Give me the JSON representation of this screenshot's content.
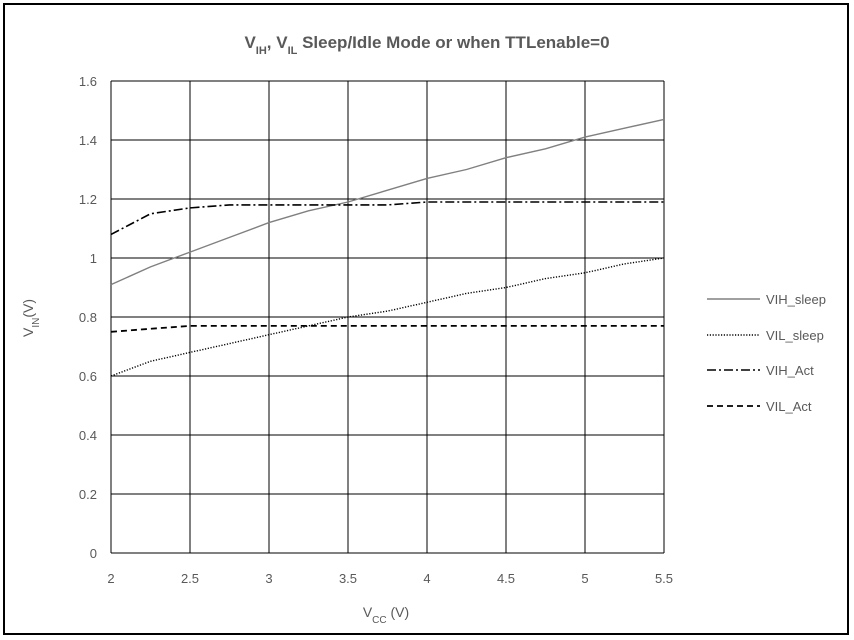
{
  "chart_data": {
    "type": "line",
    "title": {
      "parts": [
        {
          "text": "V",
          "sub": "IH"
        },
        {
          "text": ", V",
          "sub": "IL"
        },
        {
          "text": " Sleep/Idle Mode or when  TTLenable=0",
          "sub": ""
        }
      ]
    },
    "xlabel": {
      "main": "V",
      "sub": "CC",
      "rest": " (V)"
    },
    "ylabel": {
      "main": "V",
      "sub": "IN",
      "rest": "(V)"
    },
    "xlim": [
      2,
      5.5
    ],
    "ylim": [
      0,
      1.6
    ],
    "xticks": [
      2,
      2.5,
      3,
      3.5,
      4,
      4.5,
      5,
      5.5
    ],
    "xtick_labels": [
      "2",
      "2.5",
      "3",
      "3.5",
      "4",
      "4.5",
      "5",
      "5.5"
    ],
    "yticks": [
      0,
      0.2,
      0.4,
      0.6,
      0.8,
      1.0,
      1.2,
      1.4,
      1.6
    ],
    "ytick_labels": [
      "0",
      "0.2",
      "0.4",
      "0.6",
      "0.8",
      "1",
      "1.2",
      "1.4",
      "1.6"
    ],
    "grid": true,
    "legend_position": "right",
    "x": [
      2.0,
      2.25,
      2.5,
      2.75,
      3.0,
      3.25,
      3.5,
      3.75,
      4.0,
      4.25,
      4.5,
      4.75,
      5.0,
      5.25,
      5.5
    ],
    "series": [
      {
        "name": "VIH_sleep",
        "style": "solid",
        "color": "#808080",
        "values": [
          0.91,
          0.97,
          1.02,
          1.07,
          1.12,
          1.16,
          1.19,
          1.23,
          1.27,
          1.3,
          1.34,
          1.37,
          1.41,
          1.44,
          1.47
        ]
      },
      {
        "name": "VIL_sleep",
        "style": "dotted",
        "color": "#000000",
        "values": [
          0.6,
          0.65,
          0.68,
          0.71,
          0.74,
          0.77,
          0.8,
          0.82,
          0.85,
          0.88,
          0.9,
          0.93,
          0.95,
          0.98,
          1.0
        ]
      },
      {
        "name": "VIH_Act",
        "style": "dashdot",
        "color": "#000000",
        "values": [
          1.08,
          1.15,
          1.17,
          1.18,
          1.18,
          1.18,
          1.18,
          1.18,
          1.19,
          1.19,
          1.19,
          1.19,
          1.19,
          1.19,
          1.19
        ]
      },
      {
        "name": "VIL_Act",
        "style": "dashed",
        "color": "#000000",
        "values": [
          0.75,
          0.76,
          0.77,
          0.77,
          0.77,
          0.77,
          0.77,
          0.77,
          0.77,
          0.77,
          0.77,
          0.77,
          0.77,
          0.77,
          0.77
        ]
      }
    ]
  }
}
